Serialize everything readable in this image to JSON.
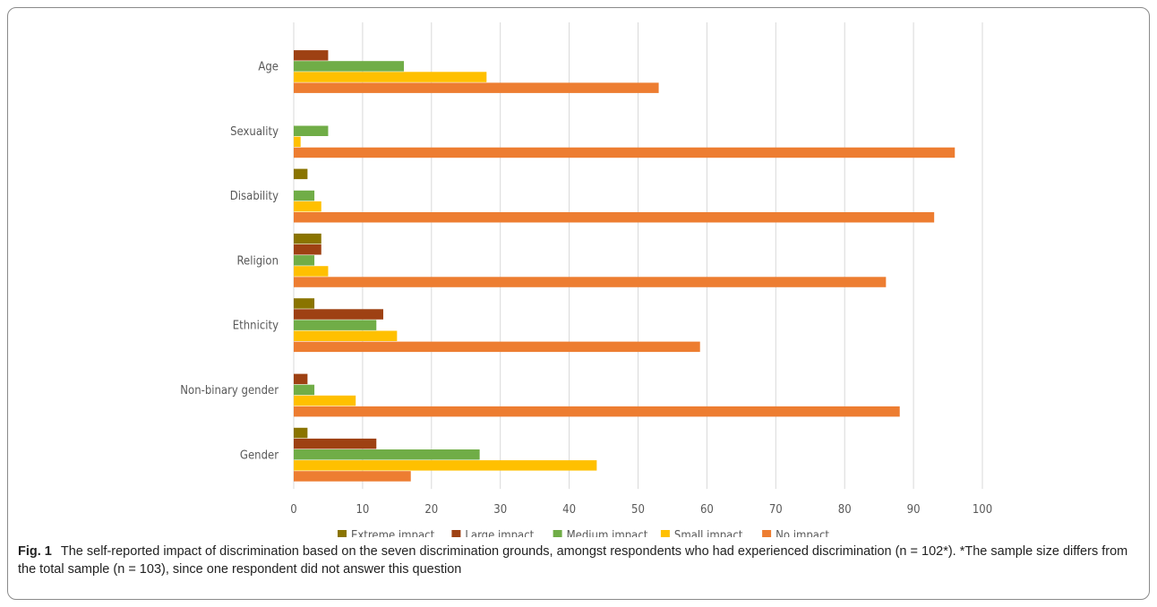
{
  "chart_data": {
    "type": "bar",
    "orientation": "horizontal",
    "categories": [
      "Age",
      "Sexuality",
      "Disability",
      "Religion",
      "Ethnicity",
      "Non-binary gender ",
      "Gender"
    ],
    "series": [
      {
        "name": "Extreme impact",
        "color": "#8a7400",
        "values": [
          0,
          0,
          2,
          4,
          3,
          0,
          2
        ]
      },
      {
        "name": "Large impact",
        "color": "#9e4113",
        "values": [
          5,
          0,
          0,
          4,
          13,
          2,
          12
        ]
      },
      {
        "name": "Medium impact",
        "color": "#70ad47",
        "values": [
          16,
          5,
          3,
          3,
          12,
          3,
          27
        ]
      },
      {
        "name": "Small impact",
        "color": "#ffc000",
        "values": [
          28,
          1,
          4,
          5,
          15,
          9,
          44
        ]
      },
      {
        "name": "No impact",
        "color": "#ed7d31",
        "values": [
          53,
          96,
          93,
          86,
          59,
          88,
          17
        ]
      }
    ],
    "xlim": [
      0,
      100
    ],
    "xticks": [
      "0",
      "10",
      "20",
      "30",
      "40",
      "50",
      "60",
      "70",
      "80",
      "90",
      "100"
    ],
    "grid": "vertical",
    "legend": "bottom"
  },
  "caption": {
    "label": "Fig. 1",
    "text": "The self-reported impact of discrimination based on the seven discrimination grounds, amongst respondents who had experienced discrimination (n = 102*). *The sample size differs from the total sample (n = 103), since one respondent did not answer this question"
  }
}
